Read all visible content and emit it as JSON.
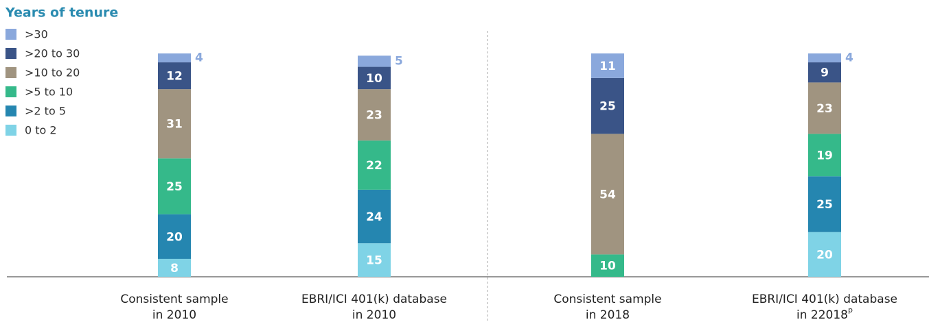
{
  "chart_data": {
    "type": "stacked-bar",
    "legend_title": "Years of tenure",
    "categories": [
      [
        "Consistent sample",
        "in 2010"
      ],
      [
        "EBRI/ICI 401(k) database",
        "in 2010"
      ],
      [
        "Consistent sample",
        "in 2018"
      ],
      [
        "EBRI/ICI 401(k) database",
        "in 22018"
      ]
    ],
    "category_superscripts": [
      null,
      null,
      null,
      "p"
    ],
    "series": [
      {
        "name": "0 to 2",
        "color": "#7fd3e6",
        "values": [
          8,
          15,
          null,
          20
        ]
      },
      {
        "name": ">2 to 5",
        "color": "#2586b0",
        "values": [
          20,
          24,
          null,
          25
        ]
      },
      {
        "name": ">5 to 10",
        "color": "#35b98a",
        "values": [
          25,
          22,
          10,
          19
        ]
      },
      {
        "name": ">10 to 20",
        "color": "#a09480",
        "values": [
          31,
          23,
          54,
          23
        ]
      },
      {
        "name": ">20 to 30",
        "color": "#3a5487",
        "values": [
          12,
          10,
          25,
          9
        ]
      },
      {
        "name": ">30",
        "color": "#8aa8dc",
        "values": [
          4,
          5,
          11,
          4
        ]
      }
    ],
    "ylim": [
      0,
      100
    ]
  }
}
